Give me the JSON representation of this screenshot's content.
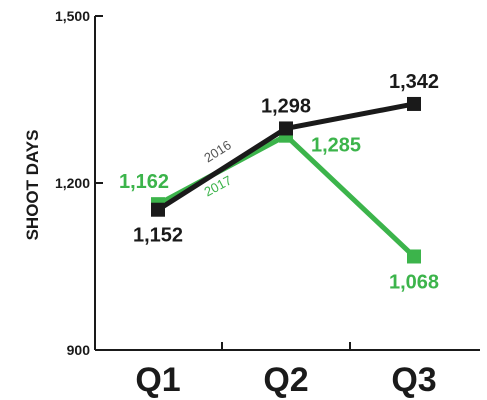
{
  "chart_data": {
    "type": "line",
    "title": "",
    "xlabel": "",
    "ylabel": "SHOOT DAYS",
    "categories": [
      "Q1",
      "Q2",
      "Q3"
    ],
    "ylim": [
      900,
      1500
    ],
    "yticks": [
      900,
      1200,
      1500
    ],
    "ytick_labels": [
      "900",
      "1,200",
      "1,500"
    ],
    "grid": false,
    "legend": "inline",
    "series": [
      {
        "name": "2016",
        "color": "#1a1a1a",
        "values": [
          1152,
          1298,
          1342
        ],
        "labels": [
          "1,152",
          "1,298",
          "1,342"
        ],
        "label_positions": [
          "below",
          "above",
          "above"
        ]
      },
      {
        "name": "2017",
        "color": "#3cb44b",
        "values": [
          1162,
          1285,
          1068
        ],
        "labels": [
          "1,162",
          "1,285",
          "1,068"
        ],
        "label_positions": [
          "left",
          "right",
          "below"
        ]
      }
    ]
  }
}
